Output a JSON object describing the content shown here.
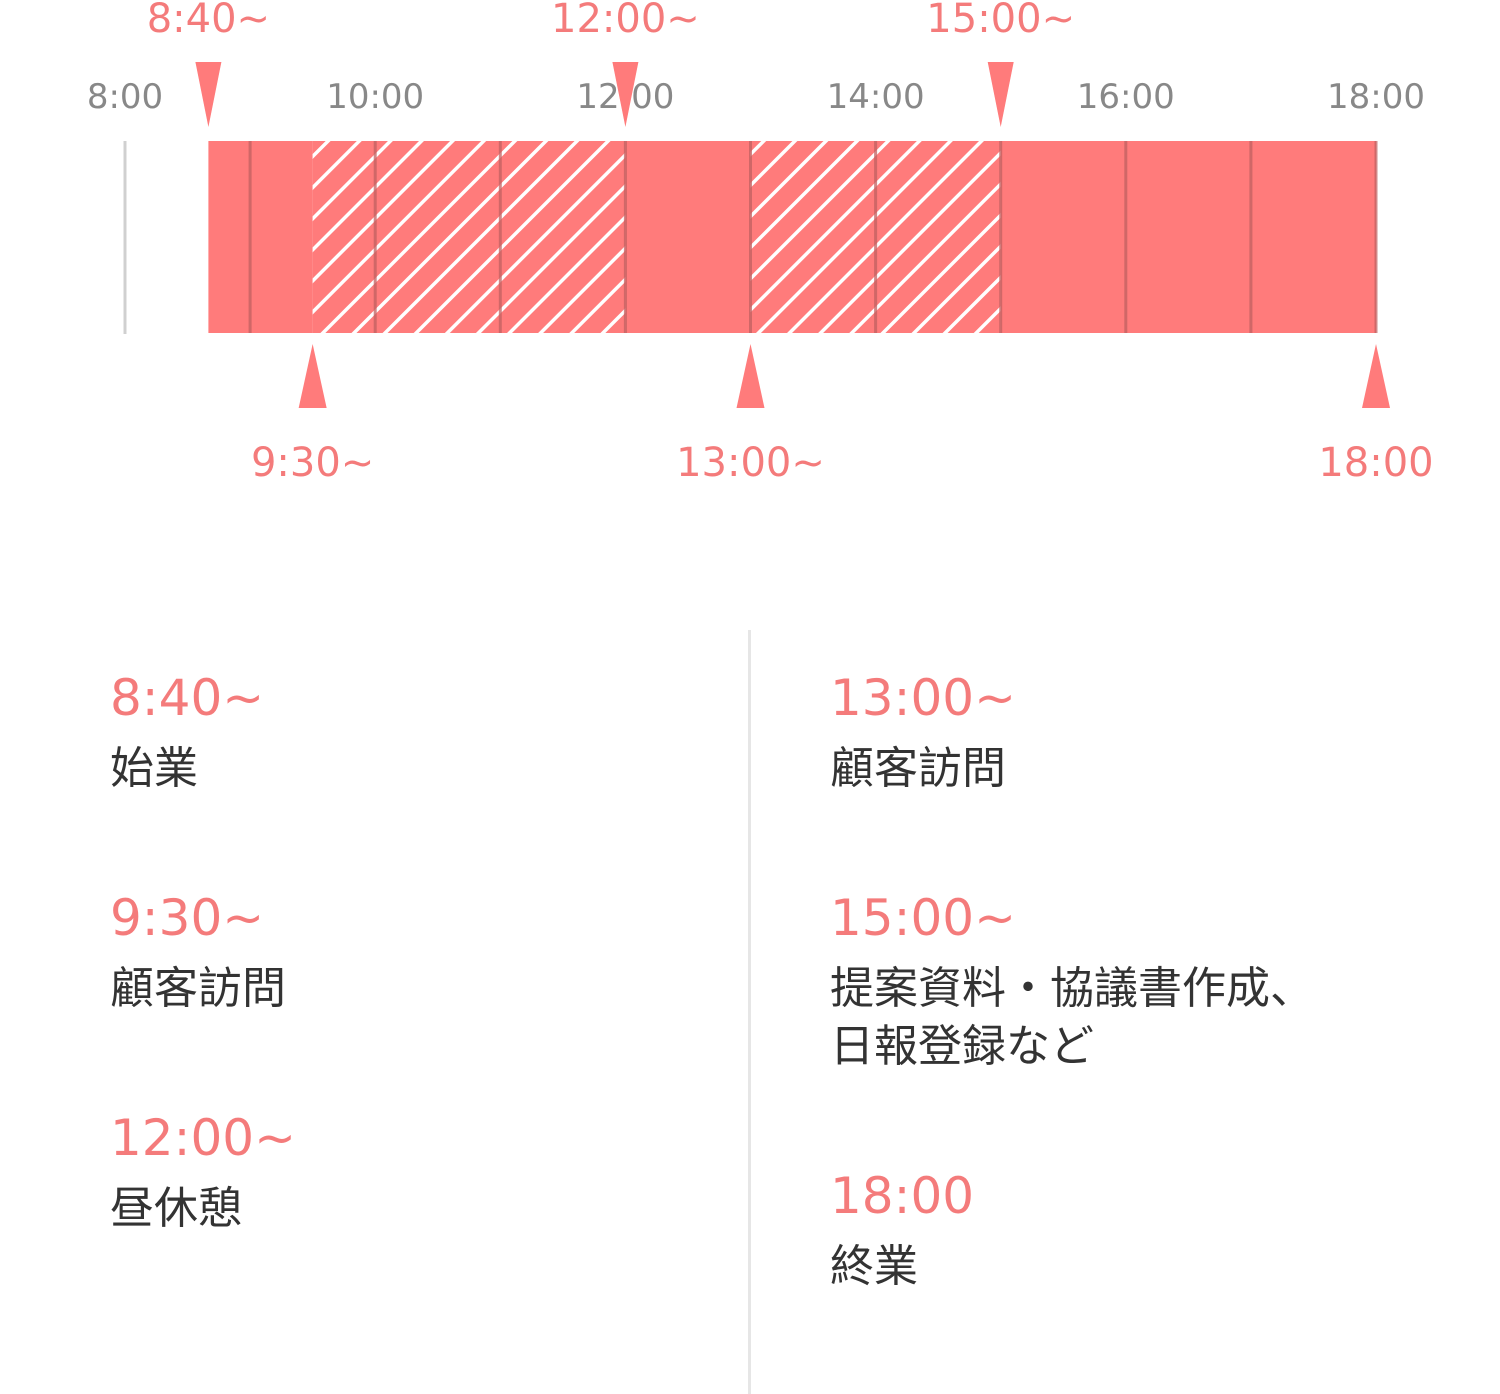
{
  "colors": {
    "accent": "#ff7b7b",
    "accent_text": "#f47b7b",
    "tick_text": "#888888",
    "body_text": "#333333",
    "hour_line": "#c06060",
    "divider": "#e6e6e6"
  },
  "timeline": {
    "axis_start_hour": 8,
    "axis_end_hour": 18,
    "hour_ticks": [
      "8:00",
      "10:00",
      "12:00",
      "14:00",
      "16:00",
      "18:00"
    ],
    "segments": [
      {
        "start": "8:40",
        "end": "9:30",
        "pattern": "solid"
      },
      {
        "start": "9:30",
        "end": "12:00",
        "pattern": "hatched"
      },
      {
        "start": "12:00",
        "end": "13:00",
        "pattern": "solid"
      },
      {
        "start": "13:00",
        "end": "15:00",
        "pattern": "hatched"
      },
      {
        "start": "15:00",
        "end": "18:00",
        "pattern": "solid"
      }
    ],
    "markers_top": [
      {
        "time": "8:40",
        "label": "8:40~"
      },
      {
        "time": "12:00",
        "label": "12:00~"
      },
      {
        "time": "15:00",
        "label": "15:00~"
      }
    ],
    "markers_bottom": [
      {
        "time": "9:30",
        "label": "9:30~"
      },
      {
        "time": "13:00",
        "label": "13:00~"
      },
      {
        "time": "18:00",
        "label": "18:00"
      }
    ]
  },
  "schedule": {
    "left": [
      {
        "time": "8:40~",
        "desc": "始業"
      },
      {
        "time": "9:30~",
        "desc": "顧客訪問"
      },
      {
        "time": "12:00~",
        "desc": "昼休憩"
      }
    ],
    "right": [
      {
        "time": "13:00~",
        "desc": "顧客訪問"
      },
      {
        "time": "15:00~",
        "desc": "提案資料・協議書作成、\n日報登録など"
      },
      {
        "time": "18:00",
        "desc": "終業"
      }
    ]
  }
}
